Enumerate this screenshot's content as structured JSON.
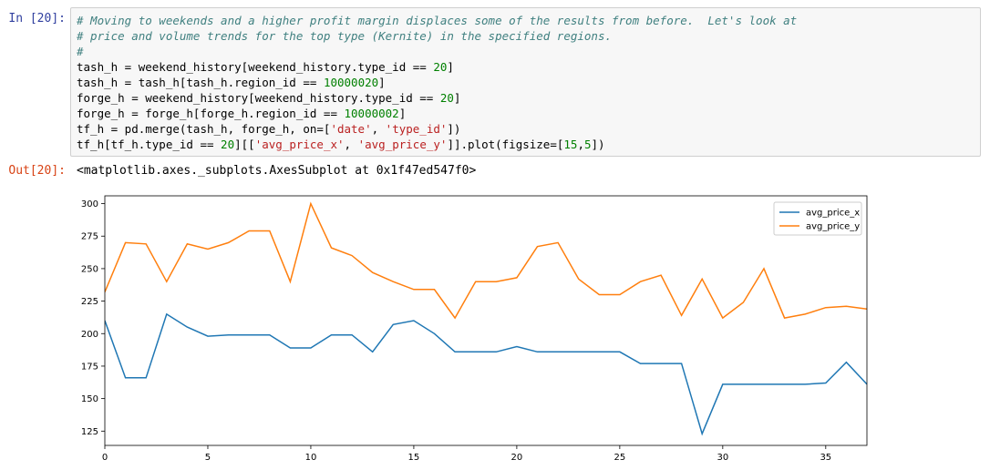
{
  "cell": {
    "in_prompt": "In [20]:",
    "out_prompt": "Out[20]:",
    "code_lines": [
      [
        {
          "t": "# Moving to weekends and a higher profit margin displaces some of the results from before.  Let's look at",
          "c": "comment"
        }
      ],
      [
        {
          "t": "# price and volume trends for the top type (Kernite) in the specified regions.",
          "c": "comment"
        }
      ],
      [
        {
          "t": "#",
          "c": "comment"
        }
      ],
      [
        {
          "t": "tash_h = weekend_history[weekend_history.type_id == ",
          "c": ""
        },
        {
          "t": "20",
          "c": "num"
        },
        {
          "t": "]",
          "c": ""
        }
      ],
      [
        {
          "t": "tash_h = tash_h[tash_h.region_id == ",
          "c": ""
        },
        {
          "t": "10000020",
          "c": "num"
        },
        {
          "t": "]",
          "c": ""
        }
      ],
      [
        {
          "t": "forge_h = weekend_history[weekend_history.type_id == ",
          "c": ""
        },
        {
          "t": "20",
          "c": "num"
        },
        {
          "t": "]",
          "c": ""
        }
      ],
      [
        {
          "t": "forge_h = forge_h[forge_h.region_id == ",
          "c": ""
        },
        {
          "t": "10000002",
          "c": "num"
        },
        {
          "t": "]",
          "c": ""
        }
      ],
      [
        {
          "t": "tf_h = pd.merge(tash_h, forge_h, on=[",
          "c": ""
        },
        {
          "t": "'date'",
          "c": "str"
        },
        {
          "t": ", ",
          "c": ""
        },
        {
          "t": "'type_id'",
          "c": "str"
        },
        {
          "t": "])",
          "c": ""
        }
      ],
      [
        {
          "t": "tf_h[tf_h.type_id == ",
          "c": ""
        },
        {
          "t": "20",
          "c": "num"
        },
        {
          "t": "][[",
          "c": ""
        },
        {
          "t": "'avg_price_x'",
          "c": "str"
        },
        {
          "t": ", ",
          "c": ""
        },
        {
          "t": "'avg_price_y'",
          "c": "str"
        },
        {
          "t": "]].plot(figsize=[",
          "c": ""
        },
        {
          "t": "15",
          "c": "num"
        },
        {
          "t": ",",
          "c": ""
        },
        {
          "t": "5",
          "c": "num"
        },
        {
          "t": "])",
          "c": ""
        }
      ]
    ],
    "output_text": "<matplotlib.axes._subplots.AxesSubplot at 0x1f47ed547f0>"
  },
  "chart_data": {
    "type": "line",
    "title": "",
    "xlabel": "",
    "ylabel": "",
    "xlim": [
      0,
      37
    ],
    "ylim": [
      114,
      306
    ],
    "xticks": [
      0,
      5,
      10,
      15,
      20,
      25,
      30,
      35
    ],
    "yticks": [
      125,
      150,
      175,
      200,
      225,
      250,
      275,
      300
    ],
    "grid": false,
    "legend_position": "top-right",
    "x": [
      0,
      1,
      2,
      3,
      4,
      5,
      6,
      7,
      8,
      9,
      10,
      11,
      12,
      13,
      14,
      15,
      16,
      17,
      18,
      19,
      20,
      21,
      22,
      23,
      24,
      25,
      26,
      27,
      28,
      29,
      30,
      31,
      32,
      33,
      34,
      35,
      36,
      37
    ],
    "series": [
      {
        "name": "avg_price_x",
        "color": "#1f77b4",
        "values": [
          210,
          166,
          166,
          215,
          205,
          198,
          199,
          199,
          199,
          189,
          189,
          199,
          199,
          186,
          207,
          210,
          200,
          186,
          186,
          186,
          190,
          186,
          186,
          186,
          186,
          186,
          177,
          177,
          177,
          123,
          161,
          161,
          161,
          161,
          161,
          162,
          178,
          161
        ]
      },
      {
        "name": "avg_price_y",
        "color": "#ff7f0e",
        "values": [
          232,
          270,
          269,
          240,
          269,
          265,
          270,
          279,
          279,
          240,
          300,
          266,
          260,
          247,
          240,
          234,
          234,
          212,
          240,
          240,
          243,
          267,
          270,
          242,
          230,
          230,
          240,
          245,
          214,
          242,
          212,
          224,
          250,
          212,
          215,
          220,
          221,
          219
        ]
      }
    ]
  }
}
